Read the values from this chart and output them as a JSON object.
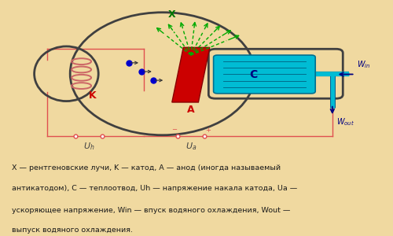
{
  "bg_color": "#f0d9a0",
  "panel_color": "#ffffff",
  "panel_border": "#cccccc",
  "caption_line1": "X — рентгеновские лучи, K — катод, A — анод (иногда называемый",
  "caption_line2": "антикатодом), C — теплоотвод, Uh — напряжение накала катода, Ua —",
  "caption_line3": "ускоряющее напряжение, Win — впуск водяного охлаждения, Wout —",
  "caption_line4": "выпуск водяного охлаждения.",
  "tube_color": "#404040",
  "anode_color": "#cc0000",
  "cooling_color": "#00bcd4",
  "circuit_color": "#e05050",
  "arrow_color": "#00aa00",
  "electron_color": "#0000cc",
  "label_color": "#000080",
  "K_color": "#cc0000",
  "A_color": "#cc0000",
  "coil_color": "#cc6666"
}
